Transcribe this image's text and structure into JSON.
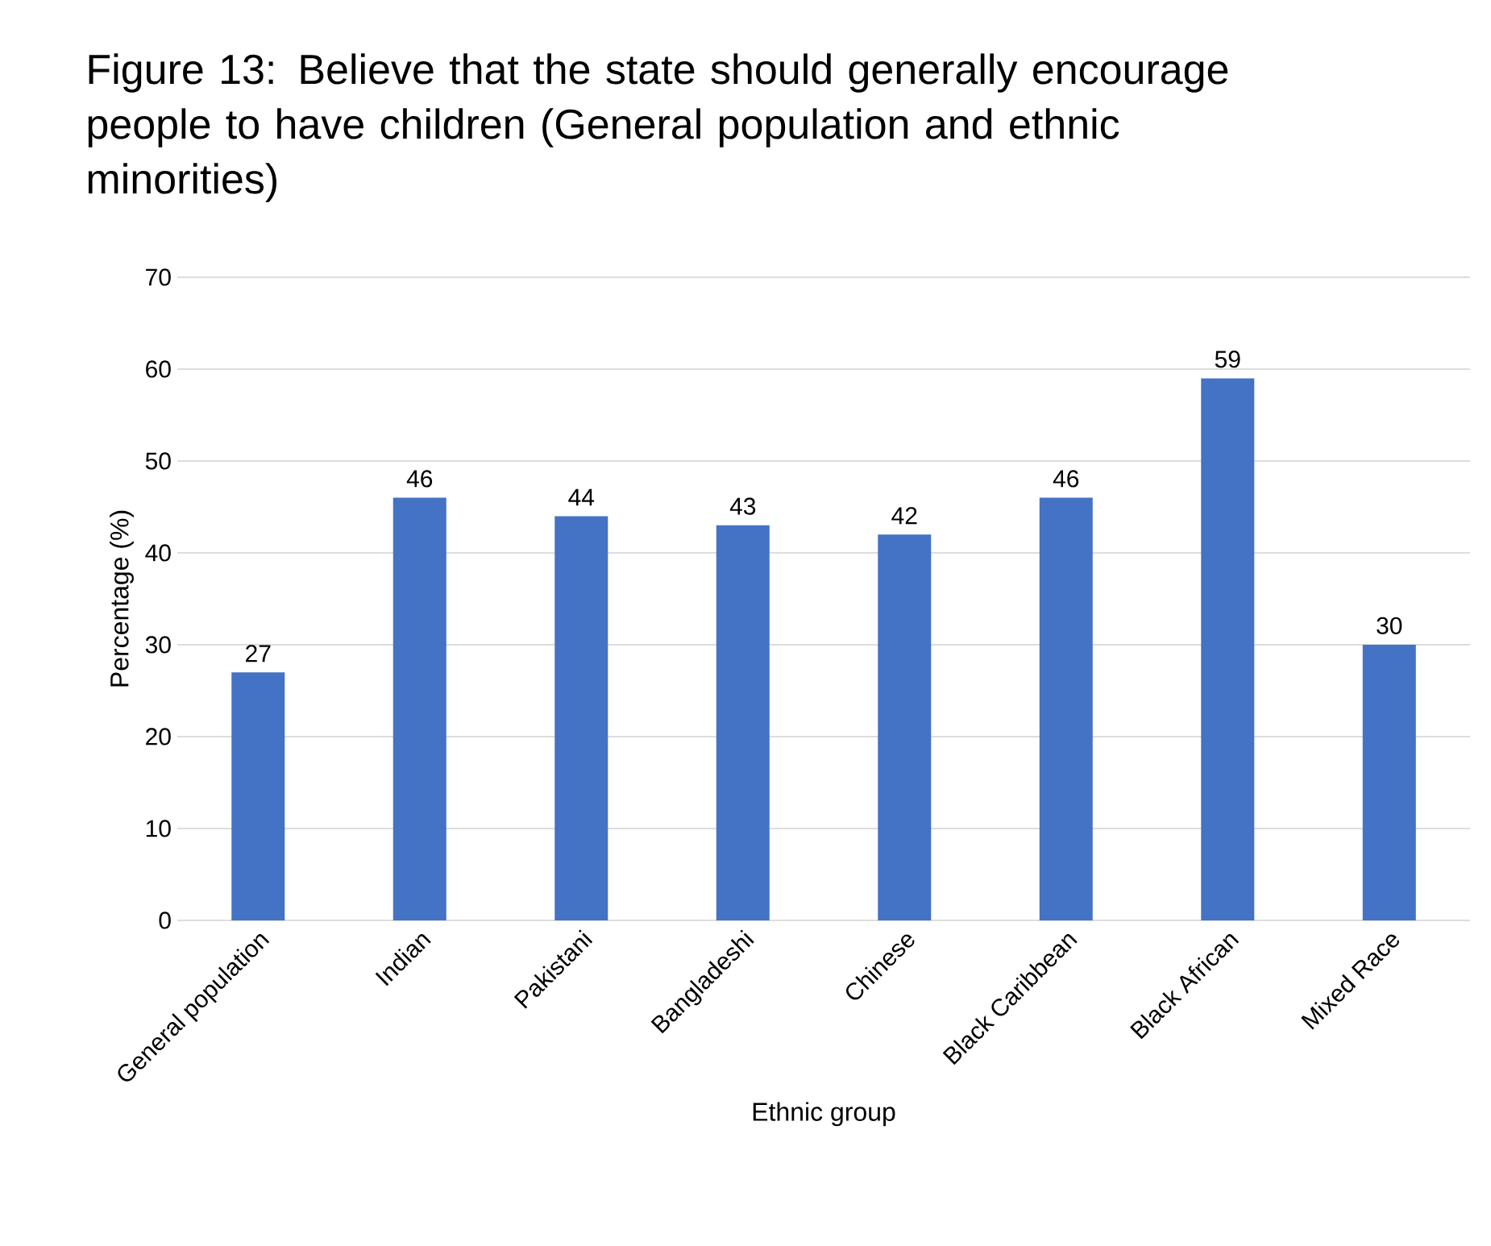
{
  "chart_data": {
    "type": "bar",
    "title": "Figure 13: Believe that the state should generally encourage people to have children  (General population and ethnic minorities)",
    "xlabel": "Ethnic group",
    "ylabel": "Percentage (%)",
    "categories": [
      "General population",
      "Indian",
      "Pakistani",
      "Bangladeshi",
      "Chinese",
      "Black Caribbean",
      "Black African",
      "Mixed Race"
    ],
    "values": [
      27,
      46,
      44,
      43,
      42,
      46,
      59,
      30
    ],
    "color": "#4472c4",
    "ylim": [
      0,
      70
    ],
    "yticks": [
      0,
      10,
      20,
      30,
      40,
      50,
      60,
      70
    ],
    "grid": "y",
    "data_labels": true
  }
}
